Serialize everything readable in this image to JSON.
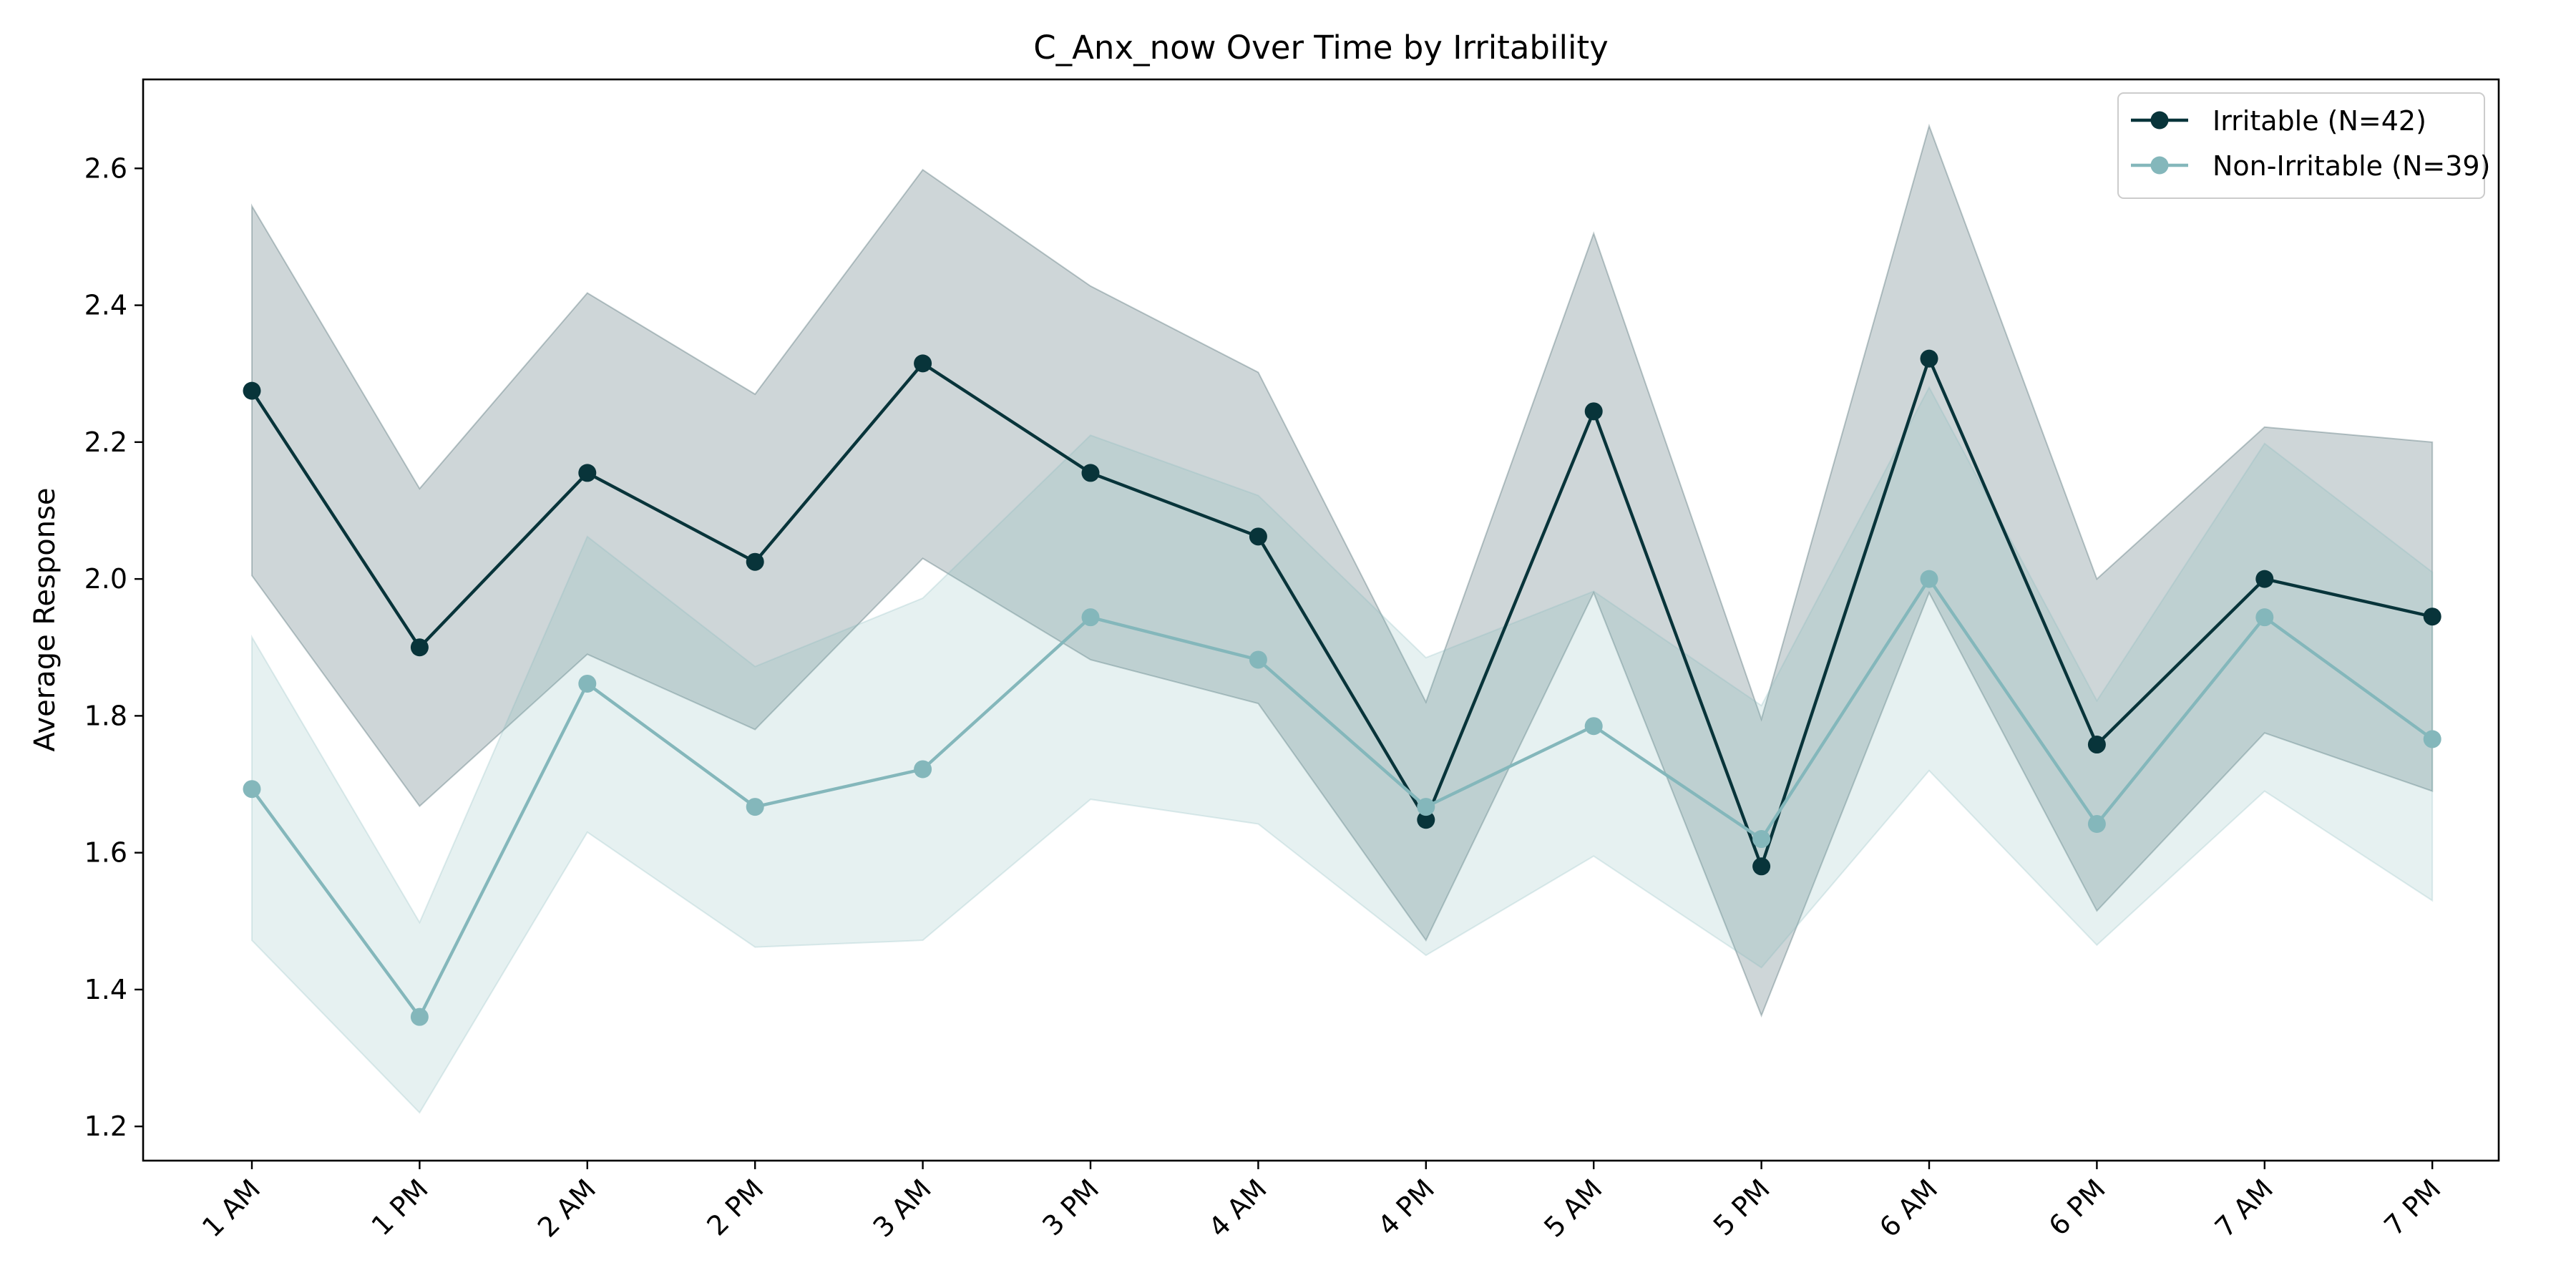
{
  "chart_data": {
    "type": "line",
    "title": "C_Anx_now Over Time by Irritability",
    "xlabel": "",
    "ylabel": "Average Response",
    "categories": [
      "1 AM",
      "1 PM",
      "2 AM",
      "2 PM",
      "3 AM",
      "3 PM",
      "4 AM",
      "4 PM",
      "5 AM",
      "5 PM",
      "6 AM",
      "6 PM",
      "7 AM",
      "7 PM"
    ],
    "ylim": [
      1.15,
      2.73
    ],
    "yticks": [
      "1.2",
      "1.4",
      "1.6",
      "1.8",
      "2.0",
      "2.2",
      "2.4",
      "2.6"
    ],
    "grid": false,
    "legend_position": "top-right",
    "series": [
      {
        "name": "Irritable (N=42)",
        "color": "#08343a",
        "band_opacity": 0.2,
        "values": [
          2.275,
          1.9,
          2.155,
          2.025,
          2.315,
          2.155,
          2.062,
          1.648,
          2.245,
          1.58,
          2.322,
          1.758,
          2.0,
          1.945
        ],
        "lower": [
          2.005,
          1.668,
          1.89,
          1.78,
          2.03,
          1.882,
          1.818,
          1.472,
          1.98,
          1.362,
          1.98,
          1.515,
          1.775,
          1.69
        ],
        "upper": [
          2.545,
          2.132,
          2.418,
          2.27,
          2.598,
          2.428,
          2.302,
          1.82,
          2.505,
          1.795,
          2.662,
          2.0,
          2.222,
          2.2
        ]
      },
      {
        "name": "Non-Irritable (N=39)",
        "color": "#84b7bb",
        "band_opacity": 0.2,
        "values": [
          1.693,
          1.36,
          1.847,
          1.667,
          1.722,
          1.944,
          1.882,
          1.667,
          1.785,
          1.62,
          2.0,
          1.642,
          1.944,
          1.766
        ],
        "lower": [
          1.472,
          1.22,
          1.63,
          1.462,
          1.472,
          1.678,
          1.642,
          1.45,
          1.595,
          1.432,
          1.72,
          1.465,
          1.69,
          1.53
        ],
        "upper": [
          1.915,
          1.498,
          2.062,
          1.872,
          1.972,
          2.21,
          2.122,
          1.885,
          1.982,
          1.815,
          2.28,
          1.822,
          2.198,
          2.01
        ]
      }
    ]
  }
}
